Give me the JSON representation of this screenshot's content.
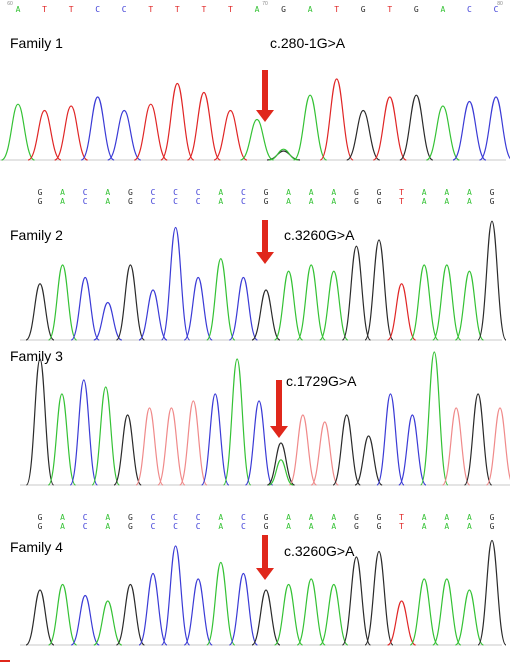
{
  "colors": {
    "A": "#35c235",
    "C": "#3b3bd6",
    "G": "#2b2b2b",
    "T": "#e02626",
    "T_light": "#f08a8a",
    "arrow": "#e0271b"
  },
  "top_ruler": {
    "letters": [
      "A",
      "T",
      "T",
      "C",
      "C",
      "T",
      "T",
      "T",
      "T",
      "A",
      "G",
      "A",
      "T",
      "G",
      "T",
      "G",
      "A",
      "C",
      "C"
    ],
    "ticks": [
      "60",
      "70",
      "80"
    ]
  },
  "panels": [
    {
      "family": "Family 1",
      "mutation": "c.280-1G>A",
      "peaks": [
        "A",
        "T",
        "T",
        "C",
        "C",
        "T",
        "T",
        "T",
        "T",
        "A",
        "G",
        "A",
        "T",
        "G",
        "T",
        "G",
        "A",
        "C",
        "C"
      ]
    },
    {
      "family": "Family 2",
      "mutation": "c.3260G>A",
      "peaks": [
        "G",
        "A",
        "C",
        "C",
        "G",
        "C",
        "C",
        "C",
        "A",
        "C",
        "G",
        "A",
        "A",
        "A",
        "G",
        "G",
        "T",
        "A",
        "A",
        "A",
        "G"
      ]
    },
    {
      "family": "Family 3",
      "mutation": "c.1729G>A",
      "peaks": [
        "G",
        "A",
        "C",
        "A",
        "G",
        "T",
        "T",
        "T",
        "C",
        "A",
        "C",
        "G",
        "T",
        "T",
        "G",
        "G",
        "C",
        "C",
        "A",
        "T",
        "G",
        "T"
      ]
    },
    {
      "family": "Family 4",
      "mutation": "c.3260G>A",
      "peaks": [
        "G",
        "A",
        "C",
        "A",
        "G",
        "C",
        "C",
        "C",
        "A",
        "C",
        "G",
        "A",
        "A",
        "A",
        "G",
        "G",
        "T",
        "A",
        "A",
        "A",
        "G"
      ]
    }
  ],
  "seq_rows": [
    [
      "G",
      "A",
      "C",
      "A",
      "G",
      "C",
      "C",
      "C",
      "A",
      "C",
      "G",
      "A",
      "A",
      "A",
      "G",
      "G",
      "T",
      "A",
      "A",
      "A",
      "G"
    ],
    [
      "G",
      "A",
      "C",
      "A",
      "G",
      "C",
      "C",
      "C",
      "A",
      "C",
      "G",
      "A",
      "A",
      "A",
      "G",
      "G",
      "T",
      "A",
      "A",
      "A",
      "G"
    ]
  ]
}
